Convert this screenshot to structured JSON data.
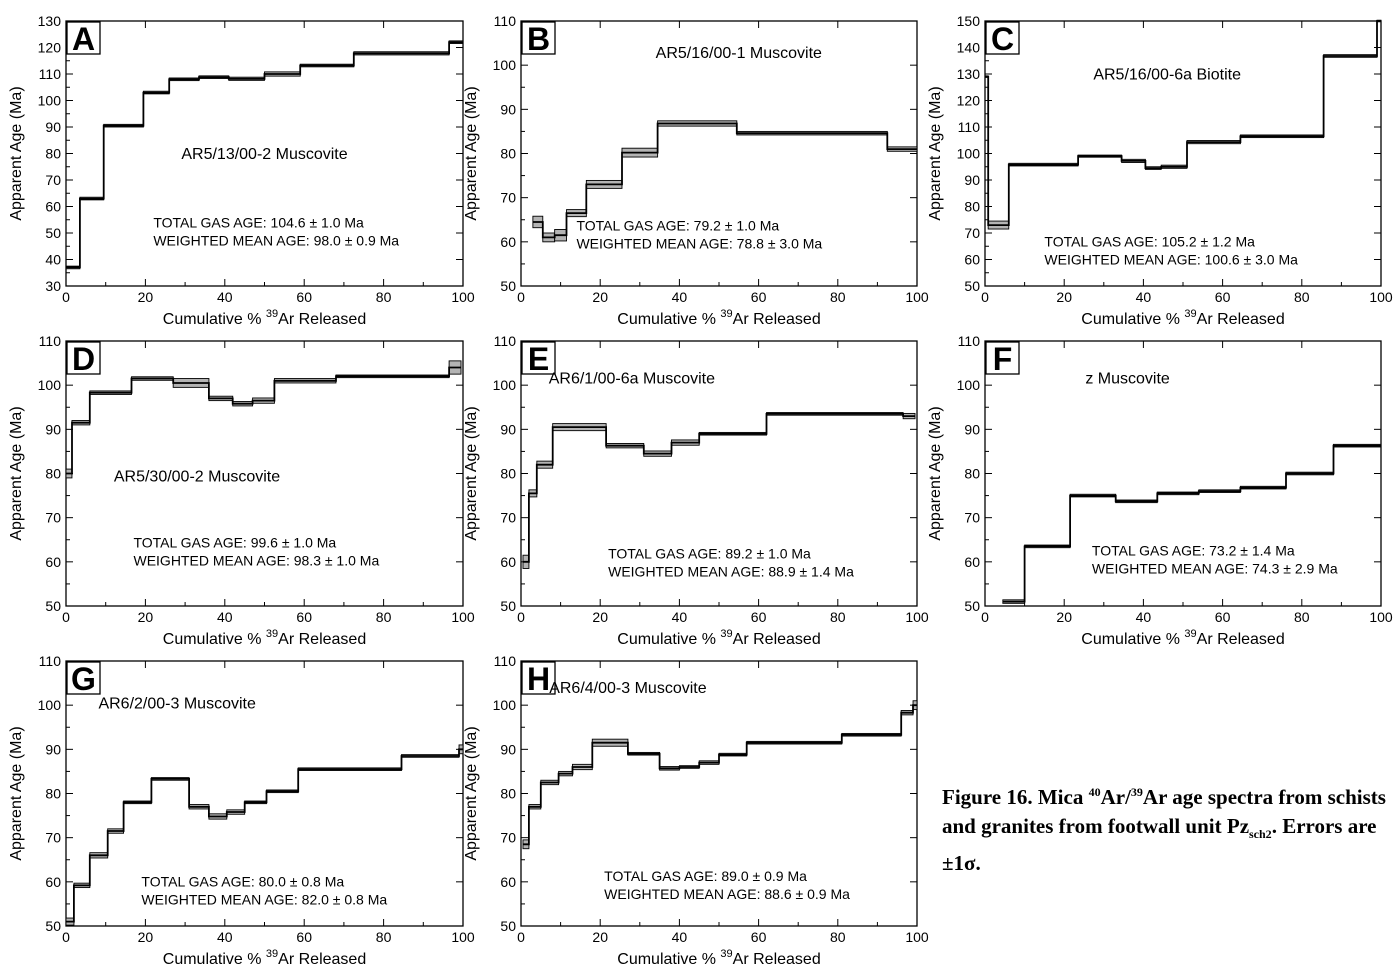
{
  "caption": {
    "prefix": "Figure 16. Mica ",
    "sup1": "40",
    "mid1": "Ar/",
    "sup2": "39",
    "mid2": "Ar age spectra from schists and granites from footwall unit Pz",
    "sub": "sch2",
    "suffix": ". Errors are ±1σ."
  },
  "axis_text": {
    "ylabel": "Apparent Age (Ma)",
    "xlabel_pre": "Cumulative % ",
    "xlabel_sup": "39",
    "xlabel_post": "Ar Released"
  },
  "chart_data": [
    {
      "type": "line",
      "panel": "A",
      "sample": "AR5/13/00-2 Muscovite",
      "total_gas": "TOTAL GAS AGE: 104.6 ± 1.0 Ma",
      "weighted_mean": "WEIGHTED MEAN AGE: 98.0 ± 0.9 Ma",
      "xlim": [
        0,
        100
      ],
      "ylim": [
        30,
        130
      ],
      "xticks": [
        0,
        20,
        40,
        60,
        80,
        100
      ],
      "yticks": [
        30,
        40,
        50,
        60,
        70,
        80,
        90,
        100,
        110,
        120,
        130
      ],
      "steps": [
        {
          "x0": 0,
          "x1": 3.5,
          "y": 37,
          "err": 0.5
        },
        {
          "x0": 3.5,
          "x1": 9.5,
          "y": 63,
          "err": 0.5
        },
        {
          "x0": 9.5,
          "x1": 19.5,
          "y": 90.5,
          "err": 0.5
        },
        {
          "x0": 19.5,
          "x1": 26,
          "y": 103,
          "err": 0.5
        },
        {
          "x0": 26,
          "x1": 33.5,
          "y": 108,
          "err": 0.5
        },
        {
          "x0": 33.5,
          "x1": 41,
          "y": 108.8,
          "err": 0.5
        },
        {
          "x0": 41,
          "x1": 50,
          "y": 108.2,
          "err": 0.6
        },
        {
          "x0": 50,
          "x1": 59,
          "y": 110,
          "err": 0.8
        },
        {
          "x0": 59,
          "x1": 72.5,
          "y": 113.2,
          "err": 0.5
        },
        {
          "x0": 72.5,
          "x1": 96.5,
          "y": 117.8,
          "err": 0.6
        },
        {
          "x0": 96.5,
          "x1": 100,
          "y": 122,
          "err": 0.5
        }
      ]
    },
    {
      "type": "line",
      "panel": "B",
      "sample": "AR5/16/00-1 Muscovite",
      "total_gas": "TOTAL GAS AGE: 79.2 ± 1.0 Ma",
      "weighted_mean": "WEIGHTED MEAN AGE: 78.8 ± 3.0 Ma",
      "xlim": [
        0,
        100
      ],
      "ylim": [
        50,
        110
      ],
      "xticks": [
        0,
        20,
        40,
        60,
        80,
        100
      ],
      "yticks": [
        50,
        60,
        70,
        80,
        90,
        100,
        110
      ],
      "steps": [
        {
          "x0": 3,
          "x1": 5.5,
          "y": 64.5,
          "err": 1.3
        },
        {
          "x0": 5.5,
          "x1": 8.5,
          "y": 61,
          "err": 1.0
        },
        {
          "x0": 8.5,
          "x1": 11.5,
          "y": 61.5,
          "err": 1.3
        },
        {
          "x0": 11.5,
          "x1": 16.5,
          "y": 66.5,
          "err": 0.8
        },
        {
          "x0": 16.5,
          "x1": 25.5,
          "y": 73,
          "err": 0.9
        },
        {
          "x0": 25.5,
          "x1": 34.5,
          "y": 80.2,
          "err": 1.0
        },
        {
          "x0": 34.5,
          "x1": 54.5,
          "y": 86.8,
          "err": 0.6
        },
        {
          "x0": 54.5,
          "x1": 92.5,
          "y": 84.6,
          "err": 0.4
        },
        {
          "x0": 92.5,
          "x1": 100,
          "y": 81,
          "err": 0.5
        }
      ]
    },
    {
      "type": "line",
      "panel": "C",
      "sample": "AR5/16/00-6a Biotite",
      "total_gas": "TOTAL GAS AGE: 105.2 ± 1.2 Ma",
      "weighted_mean": "WEIGHTED MEAN AGE: 100.6 ± 3.0 Ma",
      "xlim": [
        0,
        100
      ],
      "ylim": [
        50,
        150
      ],
      "xticks": [
        0,
        20,
        40,
        60,
        80,
        100
      ],
      "yticks": [
        50,
        60,
        70,
        80,
        90,
        100,
        110,
        120,
        130,
        140,
        150
      ],
      "steps": [
        {
          "x0": 0,
          "x1": 0.8,
          "y": 129,
          "err": 0.3
        },
        {
          "x0": 0.8,
          "x1": 6,
          "y": 73,
          "err": 1.5
        },
        {
          "x0": 6,
          "x1": 23.5,
          "y": 95.8,
          "err": 0.5
        },
        {
          "x0": 23.5,
          "x1": 34.5,
          "y": 99,
          "err": 0.4
        },
        {
          "x0": 34.5,
          "x1": 40.5,
          "y": 97.2,
          "err": 0.6
        },
        {
          "x0": 40.5,
          "x1": 44.5,
          "y": 94.5,
          "err": 0.5
        },
        {
          "x0": 44.5,
          "x1": 51,
          "y": 95,
          "err": 0.6
        },
        {
          "x0": 51,
          "x1": 64.5,
          "y": 104.3,
          "err": 0.6
        },
        {
          "x0": 64.5,
          "x1": 85.5,
          "y": 106.5,
          "err": 0.5
        },
        {
          "x0": 85.5,
          "x1": 99,
          "y": 136.8,
          "err": 0.5
        },
        {
          "x0": 99,
          "x1": 100,
          "y": 150,
          "err": 0.3
        }
      ]
    },
    {
      "type": "line",
      "panel": "D",
      "sample": "AR5/30/00-2 Muscovite",
      "total_gas": "TOTAL GAS AGE: 99.6 ± 1.0 Ma",
      "weighted_mean": "WEIGHTED MEAN AGE: 98.3 ± 1.0 Ma",
      "xlim": [
        0,
        100
      ],
      "ylim": [
        50,
        110
      ],
      "xticks": [
        0,
        20,
        40,
        60,
        80,
        100
      ],
      "yticks": [
        50,
        60,
        70,
        80,
        90,
        100,
        110
      ],
      "steps": [
        {
          "x0": 0,
          "x1": 1.5,
          "y": 80,
          "err": 1.0
        },
        {
          "x0": 1.5,
          "x1": 6,
          "y": 91.5,
          "err": 0.5
        },
        {
          "x0": 6,
          "x1": 16.5,
          "y": 98.3,
          "err": 0.4
        },
        {
          "x0": 16.5,
          "x1": 27,
          "y": 101.5,
          "err": 0.4
        },
        {
          "x0": 27,
          "x1": 36,
          "y": 100.5,
          "err": 1.0
        },
        {
          "x0": 36,
          "x1": 42,
          "y": 97,
          "err": 0.5
        },
        {
          "x0": 42,
          "x1": 47,
          "y": 95.8,
          "err": 0.5
        },
        {
          "x0": 47,
          "x1": 52.5,
          "y": 96.5,
          "err": 0.6
        },
        {
          "x0": 52.5,
          "x1": 68,
          "y": 101,
          "err": 0.5
        },
        {
          "x0": 68,
          "x1": 96.5,
          "y": 102,
          "err": 0.3
        },
        {
          "x0": 96.5,
          "x1": 99.5,
          "y": 104,
          "err": 1.5
        }
      ]
    },
    {
      "type": "line",
      "panel": "E",
      "sample": "AR6/1/00-6a Muscovite",
      "total_gas": "TOTAL GAS AGE: 89.2 ± 1.0 Ma",
      "weighted_mean": "WEIGHTED MEAN AGE: 88.9 ± 1.4 Ma",
      "xlim": [
        0,
        100
      ],
      "ylim": [
        50,
        110
      ],
      "xticks": [
        0,
        20,
        40,
        60,
        80,
        100
      ],
      "yticks": [
        50,
        60,
        70,
        80,
        90,
        100,
        110
      ],
      "steps": [
        {
          "x0": 0.5,
          "x1": 2,
          "y": 60,
          "err": 1.5
        },
        {
          "x0": 2,
          "x1": 4,
          "y": 75.5,
          "err": 0.8
        },
        {
          "x0": 4,
          "x1": 8,
          "y": 82,
          "err": 0.8
        },
        {
          "x0": 8,
          "x1": 21.5,
          "y": 90.5,
          "err": 0.8
        },
        {
          "x0": 21.5,
          "x1": 31,
          "y": 86.3,
          "err": 0.5
        },
        {
          "x0": 31,
          "x1": 38,
          "y": 84.5,
          "err": 0.6
        },
        {
          "x0": 38,
          "x1": 45,
          "y": 87,
          "err": 0.6
        },
        {
          "x0": 45,
          "x1": 62,
          "y": 89,
          "err": 0.3
        },
        {
          "x0": 62,
          "x1": 96.5,
          "y": 93.5,
          "err": 0.3
        },
        {
          "x0": 96.5,
          "x1": 99.5,
          "y": 93,
          "err": 0.6
        }
      ]
    },
    {
      "type": "line",
      "panel": "F",
      "sample": "z Muscovite",
      "total_gas": "TOTAL GAS AGE: 73.2 ± 1.4 Ma",
      "weighted_mean": "WEIGHTED MEAN AGE: 74.3 ± 2.9 Ma",
      "xlim": [
        0,
        100
      ],
      "ylim": [
        50,
        110
      ],
      "xticks": [
        0,
        20,
        40,
        60,
        80,
        100
      ],
      "yticks": [
        50,
        60,
        70,
        80,
        90,
        100,
        110
      ],
      "steps": [
        {
          "x0": 4.5,
          "x1": 10,
          "y": 51,
          "err": 0.4
        },
        {
          "x0": 10,
          "x1": 21.5,
          "y": 63.5,
          "err": 0.3
        },
        {
          "x0": 21.5,
          "x1": 33,
          "y": 75,
          "err": 0.3
        },
        {
          "x0": 33,
          "x1": 43.5,
          "y": 73.7,
          "err": 0.3
        },
        {
          "x0": 43.5,
          "x1": 54,
          "y": 75.5,
          "err": 0.3
        },
        {
          "x0": 54,
          "x1": 64.5,
          "y": 76,
          "err": 0.3
        },
        {
          "x0": 64.5,
          "x1": 76,
          "y": 76.8,
          "err": 0.3
        },
        {
          "x0": 76,
          "x1": 88,
          "y": 80,
          "err": 0.3
        },
        {
          "x0": 88,
          "x1": 100,
          "y": 86.3,
          "err": 0.3
        }
      ]
    },
    {
      "type": "line",
      "panel": "G",
      "sample": "AR6/2/00-3 Muscovite",
      "total_gas": "TOTAL GAS AGE:  80.0 ± 0.8 Ma",
      "weighted_mean": "WEIGHTED MEAN AGE: 82.0 ± 0.8 Ma",
      "xlim": [
        0,
        100
      ],
      "ylim": [
        50,
        110
      ],
      "xticks": [
        0,
        20,
        40,
        60,
        80,
        100
      ],
      "yticks": [
        50,
        60,
        70,
        80,
        90,
        100,
        110
      ],
      "steps": [
        {
          "x0": 0,
          "x1": 2,
          "y": 51,
          "err": 0.8
        },
        {
          "x0": 2,
          "x1": 6,
          "y": 59.2,
          "err": 0.5
        },
        {
          "x0": 6,
          "x1": 10.5,
          "y": 66,
          "err": 0.6
        },
        {
          "x0": 10.5,
          "x1": 14.5,
          "y": 71.5,
          "err": 0.5
        },
        {
          "x0": 14.5,
          "x1": 21.5,
          "y": 78,
          "err": 0.3
        },
        {
          "x0": 21.5,
          "x1": 31,
          "y": 83.3,
          "err": 0.3
        },
        {
          "x0": 31,
          "x1": 36,
          "y": 77,
          "err": 0.5
        },
        {
          "x0": 36,
          "x1": 40.5,
          "y": 74.8,
          "err": 0.6
        },
        {
          "x0": 40.5,
          "x1": 45,
          "y": 75.8,
          "err": 0.5
        },
        {
          "x0": 45,
          "x1": 50.5,
          "y": 78,
          "err": 0.3
        },
        {
          "x0": 50.5,
          "x1": 58.5,
          "y": 80.5,
          "err": 0.3
        },
        {
          "x0": 58.5,
          "x1": 84.5,
          "y": 85.5,
          "err": 0.3
        },
        {
          "x0": 84.5,
          "x1": 99,
          "y": 88.5,
          "err": 0.3
        },
        {
          "x0": 99,
          "x1": 100,
          "y": 90,
          "err": 1.0
        }
      ]
    },
    {
      "type": "line",
      "panel": "H",
      "sample": "AR6/4/00-3 Muscovite",
      "total_gas": "TOTAL GAS AGE: 89.0 ± 0.9 Ma",
      "weighted_mean": "WEIGHTED MEAN AGE: 88.6 ± 0.9 Ma",
      "xlim": [
        0,
        100
      ],
      "ylim": [
        50,
        110
      ],
      "xticks": [
        0,
        20,
        40,
        60,
        80,
        100
      ],
      "yticks": [
        50,
        60,
        70,
        80,
        90,
        100,
        110
      ],
      "steps": [
        {
          "x0": 0.5,
          "x1": 2,
          "y": 68.5,
          "err": 1.0
        },
        {
          "x0": 2,
          "x1": 5,
          "y": 77,
          "err": 0.5
        },
        {
          "x0": 5,
          "x1": 9.5,
          "y": 82.5,
          "err": 0.5
        },
        {
          "x0": 9.5,
          "x1": 13,
          "y": 84.5,
          "err": 0.5
        },
        {
          "x0": 13,
          "x1": 18,
          "y": 86,
          "err": 0.6
        },
        {
          "x0": 18,
          "x1": 27,
          "y": 91.5,
          "err": 0.8
        },
        {
          "x0": 27,
          "x1": 35,
          "y": 89,
          "err": 0.3
        },
        {
          "x0": 35,
          "x1": 40,
          "y": 85.7,
          "err": 0.4
        },
        {
          "x0": 40,
          "x1": 45,
          "y": 86,
          "err": 0.3
        },
        {
          "x0": 45,
          "x1": 50,
          "y": 87,
          "err": 0.4
        },
        {
          "x0": 50,
          "x1": 57,
          "y": 88.8,
          "err": 0.3
        },
        {
          "x0": 57,
          "x1": 81,
          "y": 91.5,
          "err": 0.3
        },
        {
          "x0": 81,
          "x1": 96,
          "y": 93.3,
          "err": 0.3
        },
        {
          "x0": 96,
          "x1": 99,
          "y": 98.3,
          "err": 0.5
        },
        {
          "x0": 99,
          "x1": 100,
          "y": 100,
          "err": 1.0
        }
      ]
    }
  ]
}
